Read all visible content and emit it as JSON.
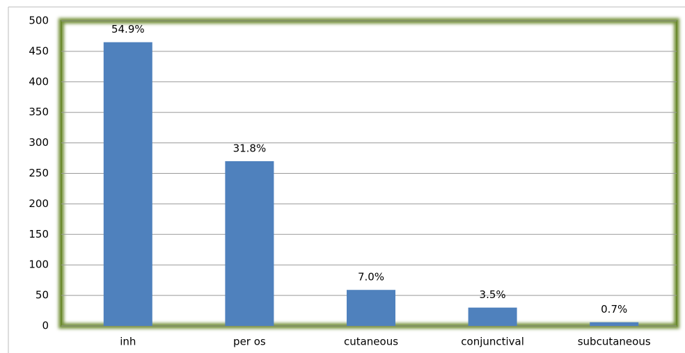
{
  "chart_data": {
    "type": "bar",
    "categories": [
      "inh",
      "per os",
      "cutaneous",
      "conjunctival",
      "subcutaneous"
    ],
    "values": [
      465,
      270,
      59,
      30,
      6
    ],
    "annotations": [
      "54.9%",
      "31.8%",
      "7.0%",
      "3.5%",
      "0.7%"
    ],
    "color": "#4f81bd",
    "ylim": [
      0,
      500
    ],
    "yticks": [
      0,
      50,
      100,
      150,
      200,
      250,
      300,
      350,
      400,
      450,
      500
    ],
    "grid": true
  }
}
